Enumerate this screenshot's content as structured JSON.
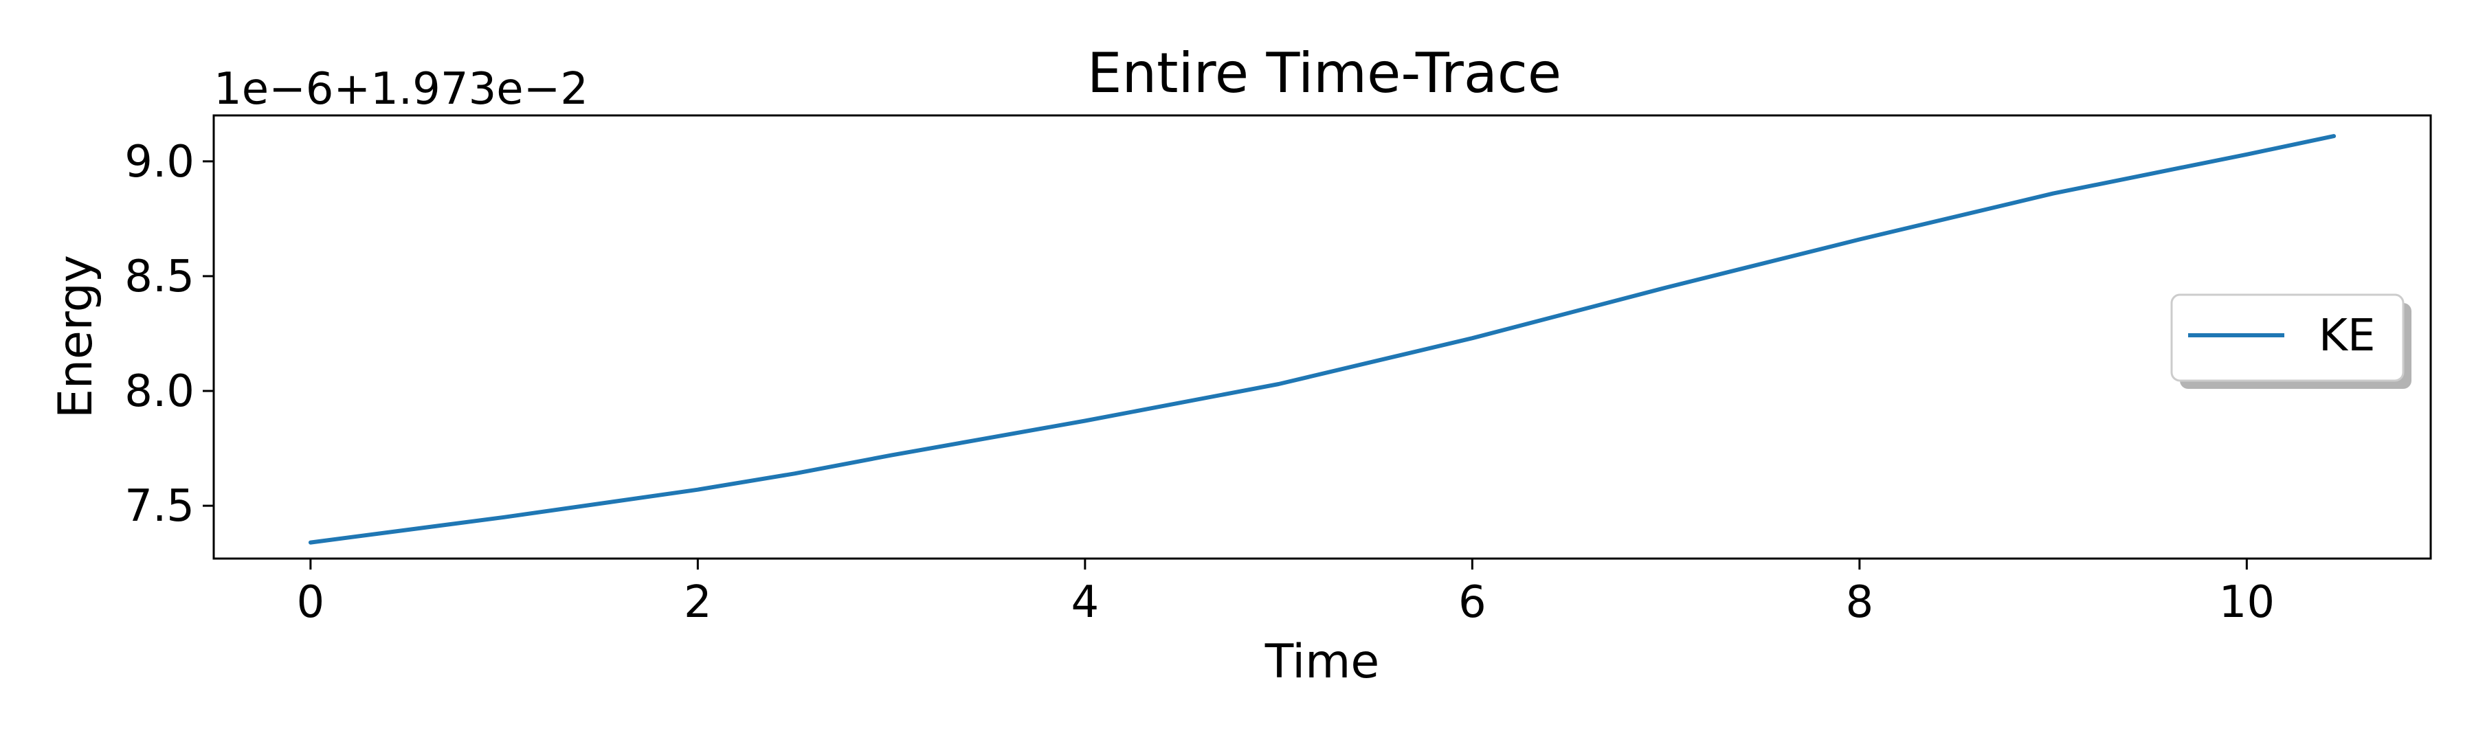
{
  "chart_data": {
    "type": "line",
    "title": "Entire Time-Trace",
    "xlabel": "Time",
    "ylabel": "Energy",
    "y_offset_label": "1e−6+1.973e−2",
    "xlim": [
      -0.5,
      10.95
    ],
    "ylim": [
      7.27,
      9.2
    ],
    "x_ticks": [
      0,
      2,
      4,
      6,
      8,
      10
    ],
    "x_tick_labels": [
      "0",
      "2",
      "4",
      "6",
      "8",
      "10"
    ],
    "y_ticks": [
      7.5,
      8.0,
      8.5,
      9.0
    ],
    "y_tick_labels": [
      "7.5",
      "8.0",
      "8.5",
      "9.0"
    ],
    "grid": false,
    "legend_position": "center-right",
    "series": [
      {
        "name": "KE",
        "color": "#1f77b4",
        "x": [
          0,
          1,
          2,
          2.5,
          3,
          4,
          5,
          6,
          7,
          8,
          9,
          10,
          10.45
        ],
        "y": [
          7.34,
          7.45,
          7.57,
          7.64,
          7.72,
          7.87,
          8.03,
          8.23,
          8.45,
          8.66,
          8.86,
          9.03,
          9.11
        ]
      }
    ]
  }
}
